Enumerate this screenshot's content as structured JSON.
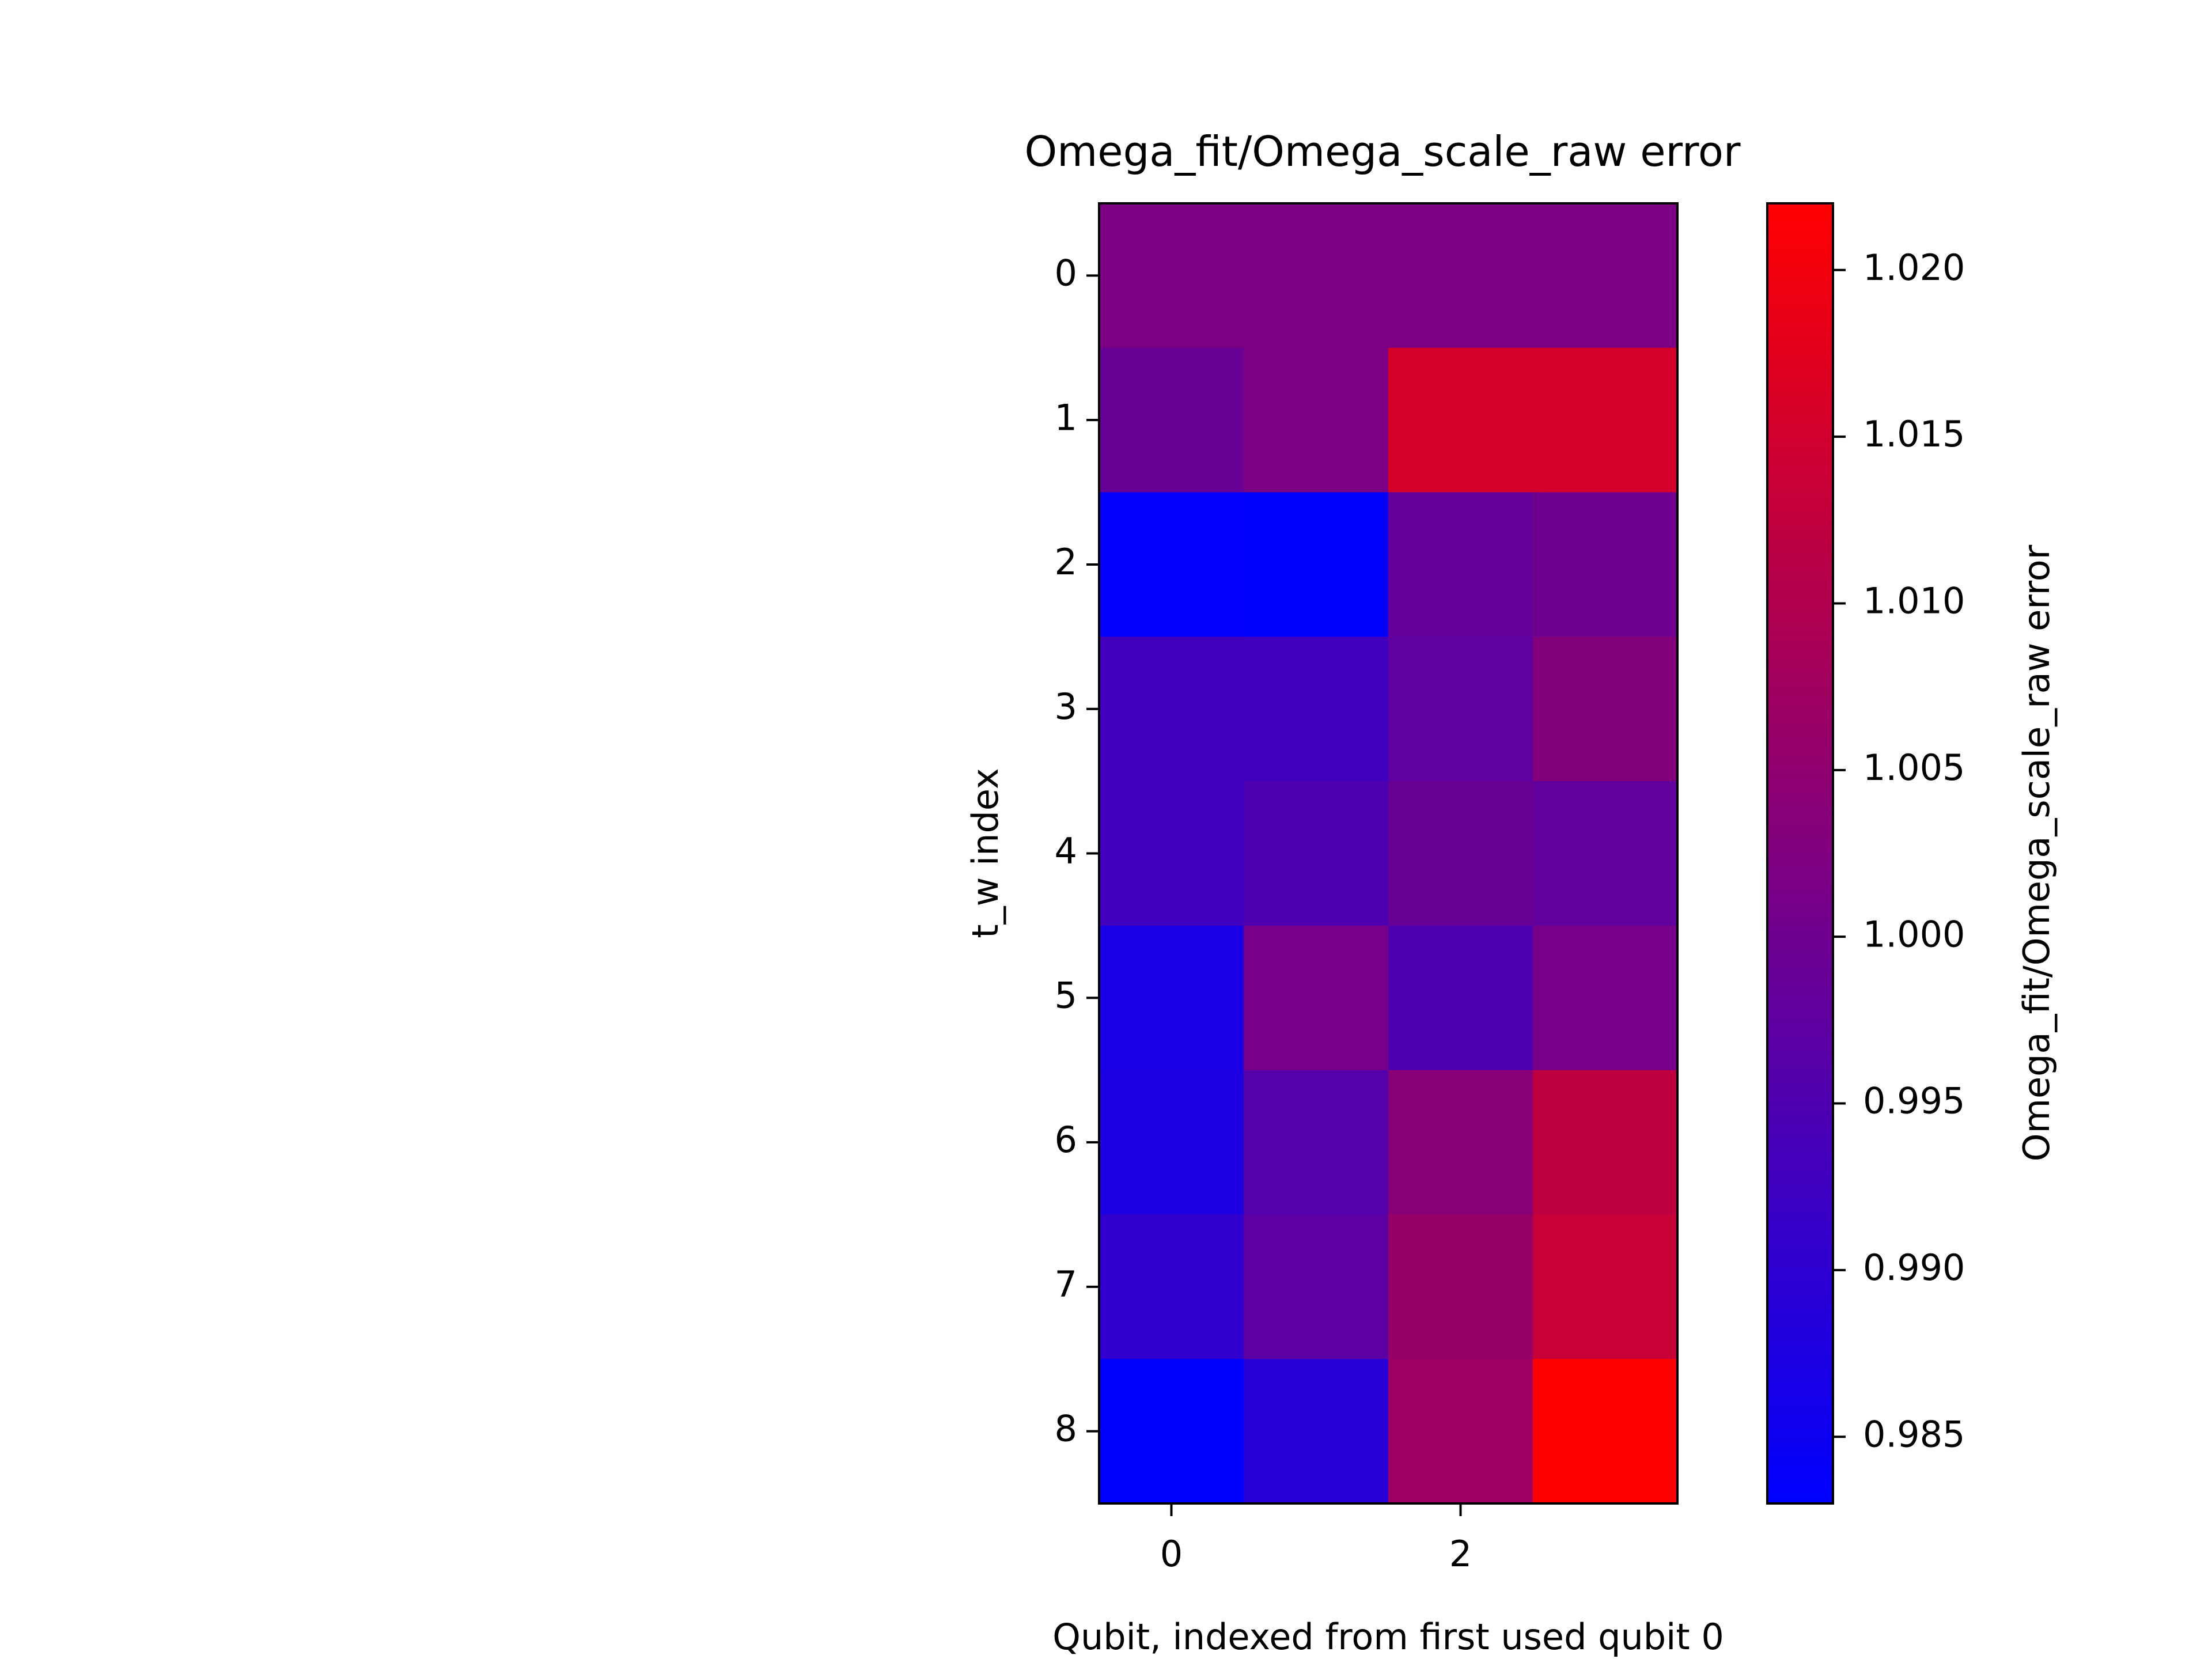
{
  "chart_data": {
    "type": "heatmap",
    "title": "Omega_fit/Omega_scale_raw error",
    "xlabel": "Qubit, indexed from first used qubit 0",
    "ylabel": "t_w index",
    "colorbar_label": "Omega_fit/Omega_scale_raw error",
    "x_ticks": [
      "0",
      "2"
    ],
    "y_ticks": [
      "0",
      "1",
      "2",
      "3",
      "4",
      "5",
      "6",
      "7",
      "8"
    ],
    "colorbar_ticks": [
      "0.985",
      "0.990",
      "0.995",
      "1.000",
      "1.005",
      "1.010",
      "1.015",
      "1.020"
    ],
    "colorbar_tick_values": [
      0.985,
      0.99,
      0.995,
      1.0,
      1.005,
      1.01,
      1.015,
      1.02
    ],
    "vmin": 0.983,
    "vmax": 1.022,
    "colormap": {
      "low": "#0000ff",
      "high": "#ff0000"
    },
    "n_cols": 4,
    "n_rows": 9,
    "values": [
      [
        1.002,
        1.002,
        1.002,
        1.002
      ],
      [
        0.999,
        1.002,
        1.0155,
        1.0155
      ],
      [
        0.9835,
        0.9832,
        0.9985,
        1.0
      ],
      [
        0.993,
        0.993,
        0.9975,
        1.003
      ],
      [
        0.993,
        0.995,
        0.999,
        0.998
      ],
      [
        0.987,
        1.001,
        0.995,
        1.001
      ],
      [
        0.9875,
        0.996,
        1.004,
        1.012
      ],
      [
        0.9905,
        0.997,
        1.006,
        1.0135
      ],
      [
        0.9832,
        0.989,
        1.007,
        1.022
      ]
    ]
  }
}
